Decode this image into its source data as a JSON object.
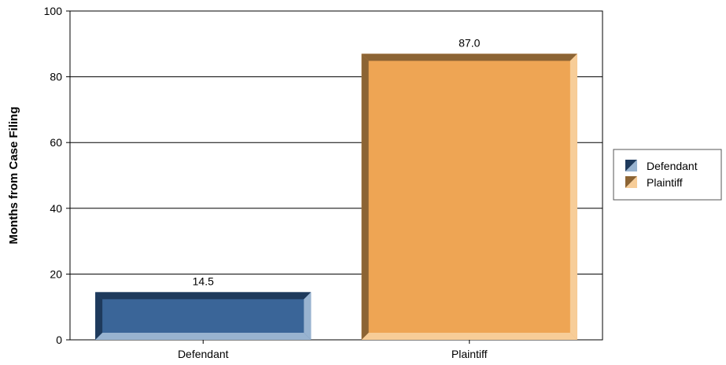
{
  "chart_data": {
    "type": "bar",
    "categories": [
      "Defendant",
      "Plaintiff"
    ],
    "values": [
      14.5,
      87.0
    ],
    "value_labels": [
      "14.5",
      "87.0"
    ],
    "ylabel": "Months from Case Filing",
    "xlabel": "",
    "ylim": [
      0,
      100
    ],
    "yticks": [
      "0",
      "20",
      "40",
      "60",
      "80",
      "100"
    ],
    "grid": true,
    "legend_position": "right",
    "legend": [
      "Defendant",
      "Plaintiff"
    ],
    "colors": {
      "Defendant": {
        "face": "#3a6598",
        "dark": "#1e3a5c",
        "light": "#98b3d0"
      },
      "Plaintiff": {
        "face": "#eea554",
        "dark": "#8c6434",
        "light": "#f7cd98"
      }
    }
  }
}
